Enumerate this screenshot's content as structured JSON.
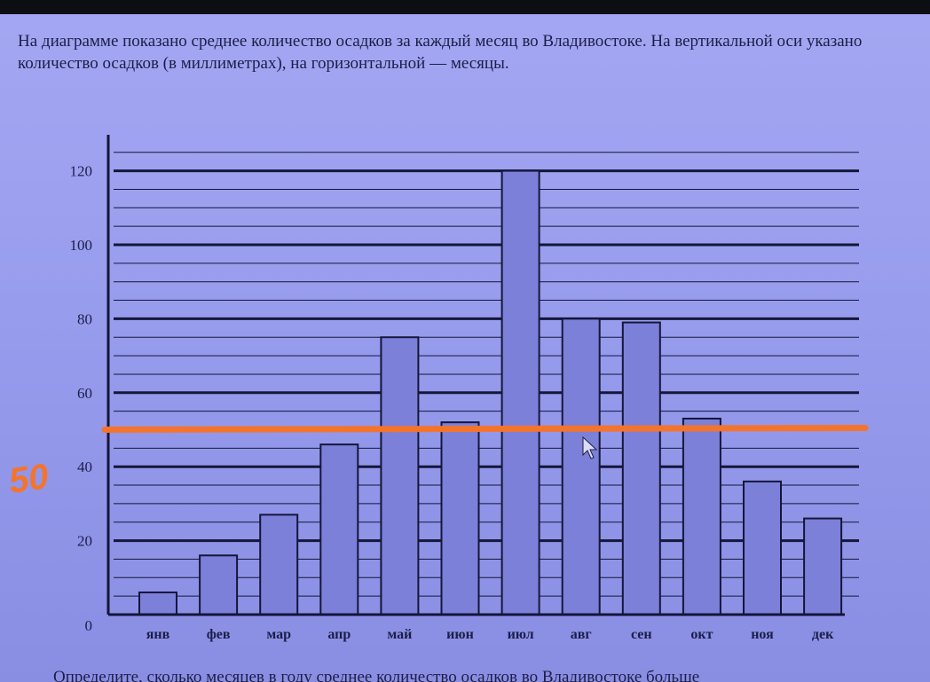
{
  "intro_text": "На диаграмме показано среднее количество осадков за каждый месяц во Владивостоке. На вертикальной оси указано количество осадков (в миллиметрах), на горизонтальной — месяцы.",
  "bottom_text": "Определите, сколько месяцев в году среднее количество осадков во Владивостоке больше",
  "chart_data": {
    "type": "bar",
    "categories": [
      "янв",
      "фев",
      "мар",
      "апр",
      "май",
      "июн",
      "июл",
      "авг",
      "сен",
      "окт",
      "ноя",
      "дек"
    ],
    "values": [
      6,
      16,
      27,
      46,
      75,
      52,
      120,
      80,
      79,
      53,
      36,
      26
    ],
    "y_ticks": [
      "0",
      "20",
      "40",
      "60",
      "80",
      "100",
      "120"
    ],
    "ylim": [
      0,
      125
    ],
    "grid": true,
    "bar_color": "#7c80d9",
    "annotation": {
      "label": "50",
      "y": 50,
      "color": "#f4742c"
    }
  }
}
